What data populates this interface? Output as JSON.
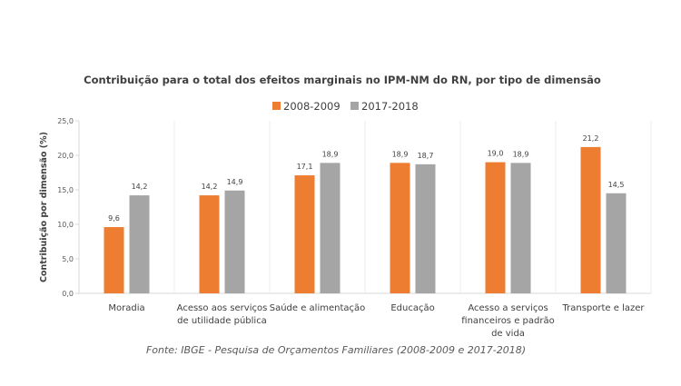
{
  "chart_data": {
    "type": "bar",
    "title": "Contribuição para o total dos efeitos marginais no IPM-NM do RN, por tipo de dimensão",
    "ylabel": "Contribuição  por dimensão (%)",
    "xlabel": "",
    "ylim": [
      0,
      25
    ],
    "yticks": [
      "0,0",
      "5,0",
      "10,0",
      "15,0",
      "20,0",
      "25,0"
    ],
    "grid": "vertical separators",
    "legend": "top-center",
    "categories": [
      [
        "Moradia"
      ],
      [
        "Acesso aos serviços",
        "de utilidade pública"
      ],
      [
        "Saúde e alimentação"
      ],
      [
        "Educação"
      ],
      [
        "Acesso a serviços",
        "financeiros e padrão",
        "de vida"
      ],
      [
        "Transporte e lazer"
      ]
    ],
    "series": [
      {
        "name": "2008-2009",
        "color": "#ED7D31",
        "values": [
          9.6,
          14.2,
          17.1,
          18.9,
          19.0,
          21.2
        ],
        "labels": [
          "9,6",
          "14,2",
          "17,1",
          "18,9",
          "19,0",
          "21,2"
        ]
      },
      {
        "name": "2017-2018",
        "color": "#A5A5A5",
        "values": [
          14.2,
          14.9,
          18.9,
          18.7,
          18.9,
          14.5
        ],
        "labels": [
          "14,2",
          "14,9",
          "18,9",
          "18,7",
          "18,9",
          "14,5"
        ]
      }
    ],
    "source": "Fonte: IBGE - Pesquisa de Orçamentos Familiares (2008-2009 e 2017-2018)"
  }
}
